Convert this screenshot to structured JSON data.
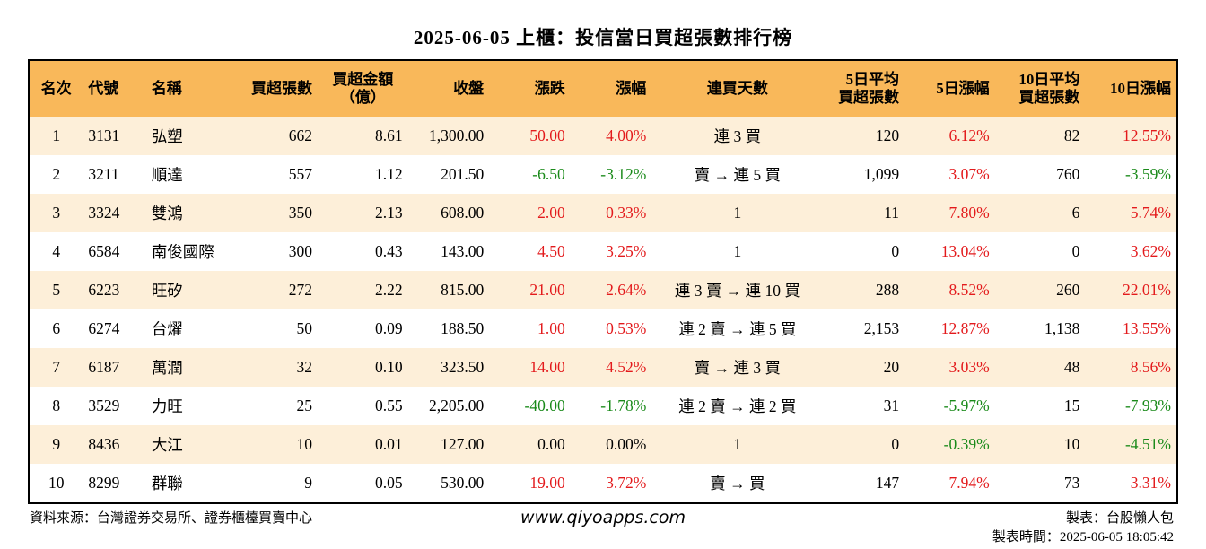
{
  "title": "2025-06-05 上櫃：投信當日買超張數排行榜",
  "colors": {
    "header_bg": "#f9b85a",
    "stripe_bg": "#fdefd9",
    "up": "#e31a1c",
    "down": "#1a8a1a"
  },
  "headers": {
    "rank": "名次",
    "code": "代號",
    "name": "名稱",
    "buy_lots": "買超張數",
    "buy_amount_line1": "買超金額",
    "buy_amount_line2": "（億）",
    "close": "收盤",
    "change": "漲跌",
    "change_pct": "漲幅",
    "streak": "連買天數",
    "avg5_line1": "5日平均",
    "avg5_line2": "買超張數",
    "pct5": "5日漲幅",
    "avg10_line1": "10日平均",
    "avg10_line2": "買超張數",
    "pct10": "10日漲幅"
  },
  "rows": [
    {
      "rank": "1",
      "code": "3131",
      "name": "弘塑",
      "buy_lots": "662",
      "buy_amount": "8.61",
      "close": "1,300.00",
      "change": "50.00",
      "change_pct": "4.00%",
      "streak": "連 3 買",
      "avg5": "120",
      "pct5": "6.12%",
      "avg10": "82",
      "pct10": "12.55%"
    },
    {
      "rank": "2",
      "code": "3211",
      "name": "順達",
      "buy_lots": "557",
      "buy_amount": "1.12",
      "close": "201.50",
      "change": "-6.50",
      "change_pct": "-3.12%",
      "streak": "賣 → 連 5 買",
      "avg5": "1,099",
      "pct5": "3.07%",
      "avg10": "760",
      "pct10": "-3.59%"
    },
    {
      "rank": "3",
      "code": "3324",
      "name": "雙鴻",
      "buy_lots": "350",
      "buy_amount": "2.13",
      "close": "608.00",
      "change": "2.00",
      "change_pct": "0.33%",
      "streak": "1",
      "avg5": "11",
      "pct5": "7.80%",
      "avg10": "6",
      "pct10": "5.74%"
    },
    {
      "rank": "4",
      "code": "6584",
      "name": "南俊國際",
      "buy_lots": "300",
      "buy_amount": "0.43",
      "close": "143.00",
      "change": "4.50",
      "change_pct": "3.25%",
      "streak": "1",
      "avg5": "0",
      "pct5": "13.04%",
      "avg10": "0",
      "pct10": "3.62%"
    },
    {
      "rank": "5",
      "code": "6223",
      "name": "旺矽",
      "buy_lots": "272",
      "buy_amount": "2.22",
      "close": "815.00",
      "change": "21.00",
      "change_pct": "2.64%",
      "streak": "連 3 賣 → 連 10 買",
      "avg5": "288",
      "pct5": "8.52%",
      "avg10": "260",
      "pct10": "22.01%"
    },
    {
      "rank": "6",
      "code": "6274",
      "name": "台燿",
      "buy_lots": "50",
      "buy_amount": "0.09",
      "close": "188.50",
      "change": "1.00",
      "change_pct": "0.53%",
      "streak": "連 2 賣 → 連 5 買",
      "avg5": "2,153",
      "pct5": "12.87%",
      "avg10": "1,138",
      "pct10": "13.55%"
    },
    {
      "rank": "7",
      "code": "6187",
      "name": "萬潤",
      "buy_lots": "32",
      "buy_amount": "0.10",
      "close": "323.50",
      "change": "14.00",
      "change_pct": "4.52%",
      "streak": "賣 → 連 3 買",
      "avg5": "20",
      "pct5": "3.03%",
      "avg10": "48",
      "pct10": "8.56%"
    },
    {
      "rank": "8",
      "code": "3529",
      "name": "力旺",
      "buy_lots": "25",
      "buy_amount": "0.55",
      "close": "2,205.00",
      "change": "-40.00",
      "change_pct": "-1.78%",
      "streak": "連 2 賣 → 連 2 買",
      "avg5": "31",
      "pct5": "-5.97%",
      "avg10": "15",
      "pct10": "-7.93%"
    },
    {
      "rank": "9",
      "code": "8436",
      "name": "大江",
      "buy_lots": "10",
      "buy_amount": "0.01",
      "close": "127.00",
      "change": "0.00",
      "change_pct": "0.00%",
      "streak": "1",
      "avg5": "0",
      "pct5": "-0.39%",
      "avg10": "10",
      "pct10": "-4.51%"
    },
    {
      "rank": "10",
      "code": "8299",
      "name": "群聯",
      "buy_lots": "9",
      "buy_amount": "0.05",
      "close": "530.00",
      "change": "19.00",
      "change_pct": "3.72%",
      "streak": "賣 → 買",
      "avg5": "147",
      "pct5": "7.94%",
      "avg10": "73",
      "pct10": "3.31%"
    }
  ],
  "footer": {
    "source": "資料來源：台灣證券交易所、證券櫃檯買賣中心",
    "url": "www.qiyoapps.com",
    "maker": "製表：台股懶人包",
    "time": "製表時間：2025-06-05 18:05:42"
  }
}
